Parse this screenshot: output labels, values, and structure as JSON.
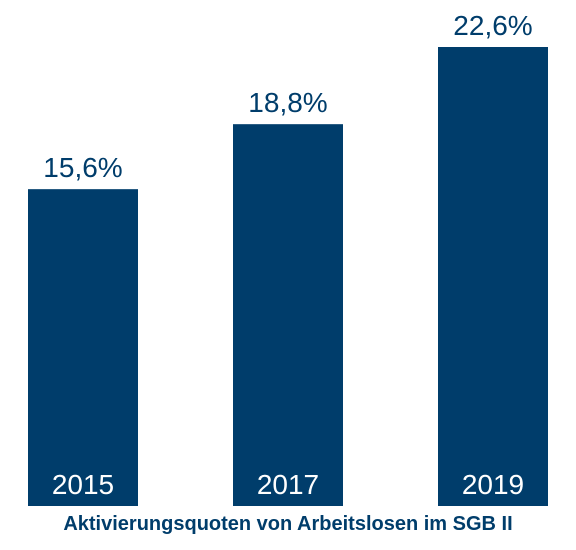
{
  "colors": {
    "bar": "#003d6b",
    "value_text": "#003d6b",
    "category_text": "#ffffff",
    "caption_text": "#003d6b",
    "background": "#ffffff"
  },
  "chart_data": {
    "type": "bar",
    "title": "Aktivierungsquoten von Arbeitslosen im SGB II",
    "categories": [
      "2015",
      "2017",
      "2019"
    ],
    "values": [
      15.6,
      18.8,
      22.6
    ],
    "value_labels": [
      "15,6%",
      "18,8%",
      "22,6%"
    ],
    "unit": "%",
    "ylim": [
      0,
      26
    ],
    "grid": false,
    "legend": "none",
    "category_labels_position": "inside-bar-bottom"
  }
}
